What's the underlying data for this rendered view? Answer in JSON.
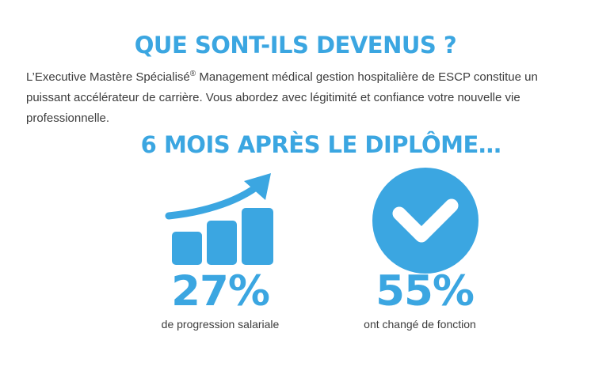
{
  "heading": {
    "title": "QUE SONT-ILS DEVENUS ?",
    "intro_part1": "L’Executive Mastère Spécialisé",
    "intro_sup": "®",
    "intro_part2": " Management médical gestion hospitalière de ESCP constitue un puissant accélérateur de carrière. Vous abordez avec légitimité et confiance votre nouvelle vie professionnelle."
  },
  "section": {
    "subtitle": "6 MOIS APRÈS LE DIPLÔME…"
  },
  "stats": [
    {
      "icon": "growth-chart-icon",
      "value": "27%",
      "caption": "de progression salariale"
    },
    {
      "icon": "check-circle-icon",
      "value": "55%",
      "caption": "ont changé de fonction"
    }
  ],
  "colors": {
    "accent": "#3ba6e1",
    "text": "#3c3c3c"
  }
}
